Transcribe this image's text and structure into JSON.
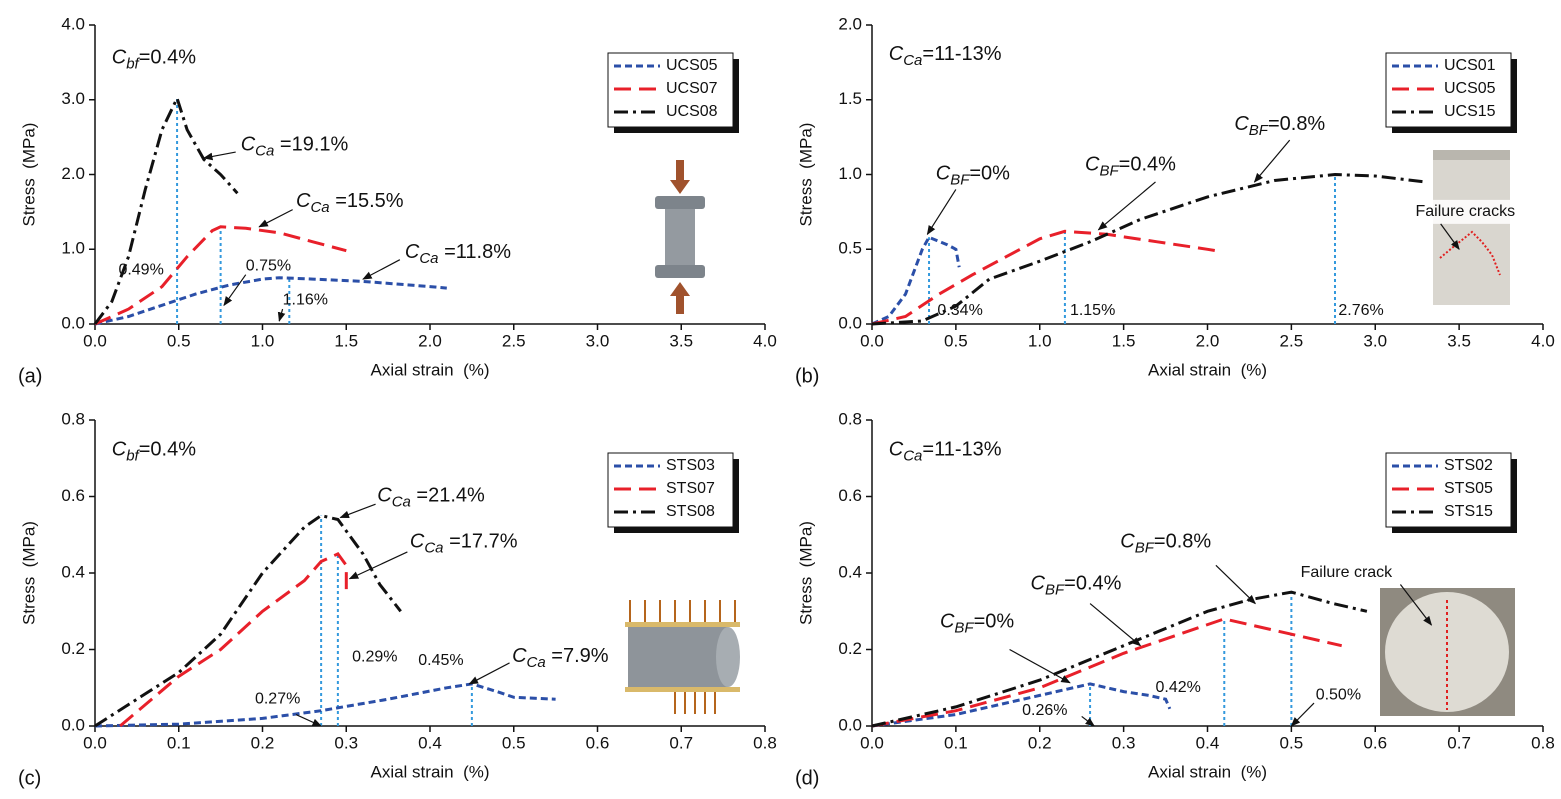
{
  "chart_data": [
    {
      "type": "line",
      "panel": "(a)",
      "x_label": "Axial strain  (%)",
      "y_label": "Stress  (MPa)",
      "xlim": [
        0,
        4
      ],
      "xticks": [
        {
          "value": 0,
          "label": "0.0"
        },
        0.5,
        {
          "value": 1,
          "label": "1.0"
        },
        1.5,
        {
          "value": 2,
          "label": "2.0"
        },
        2.5,
        {
          "value": 3,
          "label": "3.0"
        },
        3.5,
        {
          "value": 4,
          "label": "4.0"
        }
      ],
      "ylim": [
        0,
        4
      ],
      "yticks": [
        {
          "value": 0,
          "label": "0.0"
        },
        {
          "value": 1,
          "label": "1.0"
        },
        {
          "value": 2,
          "label": "2.0"
        },
        {
          "value": 3,
          "label": "3.0"
        },
        {
          "value": 4,
          "label": "4.0"
        }
      ],
      "series": [
        {
          "name": "UCS05",
          "color": "#2b4fa8",
          "style": "dash",
          "x": [
            0,
            0.2,
            0.4,
            0.6,
            0.8,
            1.0,
            1.1,
            1.3,
            1.6,
            2.0,
            2.1
          ],
          "values": [
            0,
            0.1,
            0.25,
            0.4,
            0.52,
            0.6,
            0.62,
            0.6,
            0.57,
            0.5,
            0.48
          ]
        },
        {
          "name": "UCS07",
          "color": "#e8202a",
          "style": "longdash",
          "x": [
            0,
            0.2,
            0.4,
            0.55,
            0.7,
            0.75,
            0.9,
            1.1,
            1.3,
            1.5
          ],
          "values": [
            0,
            0.2,
            0.5,
            0.9,
            1.25,
            1.3,
            1.28,
            1.22,
            1.1,
            0.98
          ]
        },
        {
          "name": "UCS08",
          "color": "#111111",
          "style": "dashdot",
          "x": [
            0,
            0.1,
            0.2,
            0.3,
            0.4,
            0.49,
            0.55,
            0.65,
            0.75,
            0.85
          ],
          "values": [
            0,
            0.3,
            0.9,
            1.8,
            2.6,
            3.02,
            2.6,
            2.2,
            2.0,
            1.75
          ]
        }
      ],
      "peaks": [
        {
          "strain": 0.49,
          "stress": 3.02,
          "label": "0.49%"
        },
        {
          "strain": 0.75,
          "stress": 1.3,
          "label": "0.75%"
        },
        {
          "strain": 1.16,
          "stress": 0.62,
          "label": "1.16%"
        }
      ],
      "annotations": [
        {
          "symbol": "C",
          "sub": "bf",
          "rest": "=0.4%"
        },
        {
          "symbol": "C",
          "sub": "Ca",
          "rest": " =19.1%"
        },
        {
          "symbol": "C",
          "sub": "Ca",
          "rest": " =15.5%"
        },
        {
          "symbol": "C",
          "sub": "Ca",
          "rest": " =11.8%"
        }
      ]
    },
    {
      "type": "line",
      "panel": "(b)",
      "x_label": "Axial strain  (%)",
      "y_label": "Stress  (MPa)",
      "xlim": [
        0,
        4
      ],
      "xticks": [
        {
          "value": 0,
          "label": "0.0"
        },
        0.5,
        {
          "value": 1,
          "label": "1.0"
        },
        1.5,
        {
          "value": 2,
          "label": "2.0"
        },
        2.5,
        {
          "value": 3,
          "label": "3.0"
        },
        3.5,
        {
          "value": 4,
          "label": "4.0"
        }
      ],
      "ylim": [
        0,
        2
      ],
      "yticks": [
        {
          "value": 0,
          "label": "0.0"
        },
        0.5,
        {
          "value": 1,
          "label": "1.0"
        },
        1.5,
        {
          "value": 2,
          "label": "2.0"
        }
      ],
      "series": [
        {
          "name": "UCS01",
          "color": "#2b4fa8",
          "style": "dash",
          "x": [
            0,
            0.1,
            0.2,
            0.3,
            0.34,
            0.45,
            0.5,
            0.52
          ],
          "values": [
            0,
            0.05,
            0.2,
            0.5,
            0.58,
            0.53,
            0.5,
            0.38
          ]
        },
        {
          "name": "UCS05",
          "color": "#e8202a",
          "style": "longdash",
          "x": [
            0,
            0.2,
            0.4,
            0.6,
            0.8,
            1.0,
            1.15,
            1.4,
            1.7,
            2.0,
            2.05
          ],
          "values": [
            0,
            0.05,
            0.2,
            0.33,
            0.45,
            0.57,
            0.62,
            0.6,
            0.55,
            0.5,
            0.49
          ]
        },
        {
          "name": "UCS15",
          "color": "#111111",
          "style": "dashdot",
          "x": [
            0,
            0.3,
            0.5,
            0.7,
            1.0,
            1.3,
            1.6,
            2.0,
            2.4,
            2.76,
            3.0,
            3.3
          ],
          "values": [
            0,
            0.02,
            0.12,
            0.3,
            0.42,
            0.55,
            0.7,
            0.85,
            0.96,
            1.0,
            0.99,
            0.95
          ]
        }
      ],
      "peaks": [
        {
          "strain": 0.34,
          "stress": 0.58,
          "label": "0.34%"
        },
        {
          "strain": 1.15,
          "stress": 0.62,
          "label": "1.15%"
        },
        {
          "strain": 2.76,
          "stress": 1.0,
          "label": "2.76%"
        }
      ],
      "annotations": [
        {
          "symbol": "C",
          "sub": "Ca",
          "rest": "=11-13%"
        },
        {
          "symbol": "C",
          "sub": "BF",
          "rest": "=0%"
        },
        {
          "symbol": "C",
          "sub": "BF",
          "rest": "=0.4%"
        },
        {
          "symbol": "C",
          "sub": "BF",
          "rest": "=0.8%"
        },
        {
          "text": "Failure cracks"
        }
      ]
    },
    {
      "type": "line",
      "panel": "(c)",
      "x_label": "Axial strain  (%)",
      "y_label": "Stress  (MPa)",
      "xlim": [
        0,
        0.8
      ],
      "xticks": [
        {
          "value": 0,
          "label": "0.0"
        },
        0.1,
        0.2,
        0.3,
        0.4,
        0.5,
        0.6,
        0.7,
        0.8
      ],
      "ylim": [
        0,
        0.8
      ],
      "yticks": [
        {
          "value": 0,
          "label": "0.0"
        },
        0.2,
        0.4,
        0.6,
        0.8
      ],
      "series": [
        {
          "name": "STS03",
          "color": "#2b4fa8",
          "style": "dash",
          "x": [
            0,
            0.1,
            0.2,
            0.27,
            0.35,
            0.42,
            0.45,
            0.48,
            0.5,
            0.55
          ],
          "values": [
            0,
            0.005,
            0.02,
            0.04,
            0.07,
            0.1,
            0.11,
            0.09,
            0.075,
            0.07
          ]
        },
        {
          "name": "STS07",
          "color": "#e8202a",
          "style": "longdash",
          "x": [
            0.03,
            0.1,
            0.15,
            0.2,
            0.25,
            0.27,
            0.29,
            0.3,
            0.3
          ],
          "values": [
            0,
            0.13,
            0.2,
            0.3,
            0.38,
            0.43,
            0.45,
            0.42,
            0.34
          ]
        },
        {
          "name": "STS08",
          "color": "#111111",
          "style": "dashdot",
          "x": [
            0,
            0.05,
            0.1,
            0.15,
            0.2,
            0.25,
            0.27,
            0.29,
            0.32,
            0.34,
            0.365
          ],
          "values": [
            0,
            0.07,
            0.14,
            0.24,
            0.4,
            0.52,
            0.55,
            0.54,
            0.45,
            0.37,
            0.3
          ]
        }
      ],
      "peaks": [
        {
          "strain": 0.27,
          "stress": 0.55,
          "label": "0.27%"
        },
        {
          "strain": 0.29,
          "stress": 0.45,
          "label": "0.29%"
        },
        {
          "strain": 0.45,
          "stress": 0.11,
          "label": "0.45%"
        }
      ],
      "annotations": [
        {
          "symbol": "C",
          "sub": "bf",
          "rest": "=0.4%"
        },
        {
          "symbol": "C",
          "sub": "Ca",
          "rest": " =21.4%"
        },
        {
          "symbol": "C",
          "sub": "Ca",
          "rest": " =17.7%"
        },
        {
          "symbol": "C",
          "sub": "Ca",
          "rest": " =7.9%"
        }
      ]
    },
    {
      "type": "line",
      "panel": "(d)",
      "x_label": "Axial strain  (%)",
      "y_label": "Stress  (MPa)",
      "xlim": [
        0,
        0.8
      ],
      "xticks": [
        {
          "value": 0,
          "label": "0.0"
        },
        0.1,
        0.2,
        0.3,
        0.4,
        0.5,
        0.6,
        0.7,
        0.8
      ],
      "ylim": [
        0,
        0.8
      ],
      "yticks": [
        {
          "value": 0,
          "label": "0.0"
        },
        0.2,
        0.4,
        0.6,
        0.8
      ],
      "series": [
        {
          "name": "STS02",
          "color": "#2b4fa8",
          "style": "dash",
          "x": [
            0,
            0.1,
            0.2,
            0.26,
            0.3,
            0.33,
            0.35,
            0.355
          ],
          "values": [
            0,
            0.03,
            0.08,
            0.11,
            0.09,
            0.08,
            0.07,
            0.045
          ]
        },
        {
          "name": "STS05",
          "color": "#e8202a",
          "style": "longdash",
          "x": [
            0,
            0.1,
            0.2,
            0.3,
            0.42,
            0.5,
            0.56
          ],
          "values": [
            0,
            0.04,
            0.1,
            0.19,
            0.28,
            0.24,
            0.21
          ]
        },
        {
          "name": "STS15",
          "color": "#111111",
          "style": "dashdot",
          "x": [
            0,
            0.1,
            0.2,
            0.3,
            0.4,
            0.45,
            0.5,
            0.55,
            0.59
          ],
          "values": [
            0,
            0.05,
            0.12,
            0.21,
            0.3,
            0.33,
            0.35,
            0.32,
            0.3
          ]
        }
      ],
      "peaks": [
        {
          "strain": 0.26,
          "stress": 0.11,
          "label": "0.26%"
        },
        {
          "strain": 0.42,
          "stress": 0.28,
          "label": "0.42%"
        },
        {
          "strain": 0.5,
          "stress": 0.35,
          "label": "0.50%"
        }
      ],
      "annotations": [
        {
          "symbol": "C",
          "sub": "Ca",
          "rest": "=11-13%"
        },
        {
          "symbol": "C",
          "sub": "BF",
          "rest": "=0%"
        },
        {
          "symbol": "C",
          "sub": "BF",
          "rest": "=0.4%"
        },
        {
          "symbol": "C",
          "sub": "BF",
          "rest": "=0.8%"
        },
        {
          "text": "Failure crack"
        }
      ]
    }
  ]
}
